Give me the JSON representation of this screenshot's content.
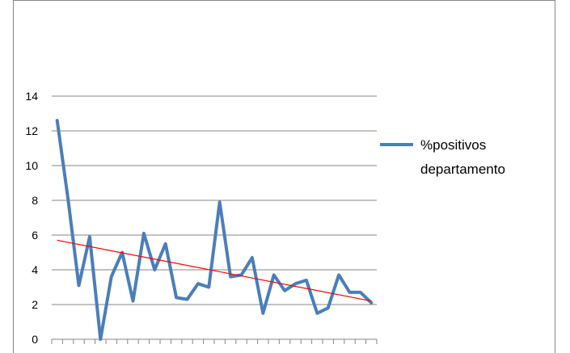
{
  "chart_data": {
    "type": "line",
    "ylim": [
      0,
      14
    ],
    "yticks": [
      0,
      2,
      4,
      6,
      8,
      10,
      12,
      14
    ],
    "grid": true,
    "legend_position": "right",
    "series": [
      {
        "name": "%positivos departamento",
        "color": "#4a7ebb",
        "values": [
          12.6,
          8.1,
          3.1,
          5.9,
          0.0,
          3.6,
          5.0,
          2.2,
          6.1,
          4.0,
          5.5,
          2.4,
          2.3,
          3.2,
          3.0,
          7.9,
          3.6,
          3.7,
          4.7,
          1.5,
          3.7,
          2.8,
          3.2,
          3.4,
          1.5,
          1.8,
          3.7,
          2.7,
          2.7,
          2.1
        ]
      }
    ],
    "trendline": {
      "color": "#ff0000",
      "start": 5.7,
      "end": 2.2
    }
  }
}
